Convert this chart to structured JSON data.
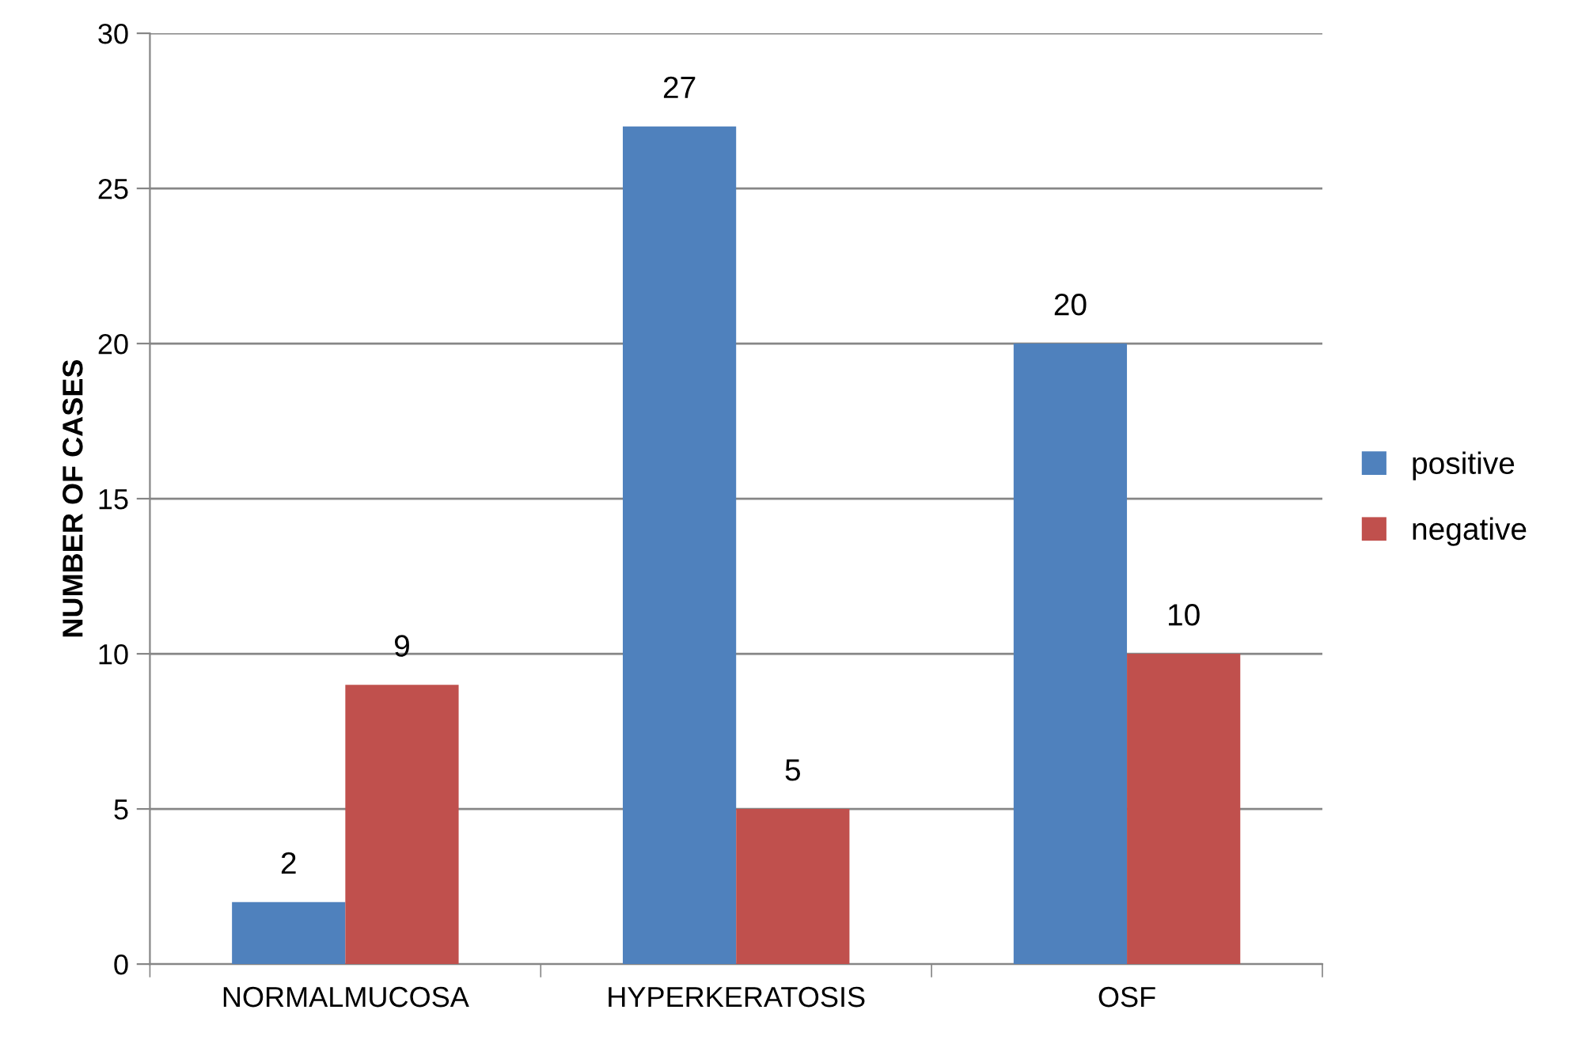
{
  "chart_data": {
    "type": "bar",
    "ylabel": "NUMBER OF CASES",
    "categories": [
      "NORMALMUCOSA",
      "HYPERKERATOSIS",
      "OSF"
    ],
    "series": [
      {
        "name": "positive",
        "color": "#4f81bd",
        "values": [
          2,
          27,
          20
        ]
      },
      {
        "name": "negative",
        "color": "#c0504d",
        "values": [
          9,
          5,
          10
        ]
      }
    ],
    "ylim": [
      0,
      30
    ],
    "yticks": [
      0,
      5,
      10,
      15,
      20,
      25,
      30
    ],
    "grid": "y",
    "legend": "right",
    "data_labels": true
  }
}
